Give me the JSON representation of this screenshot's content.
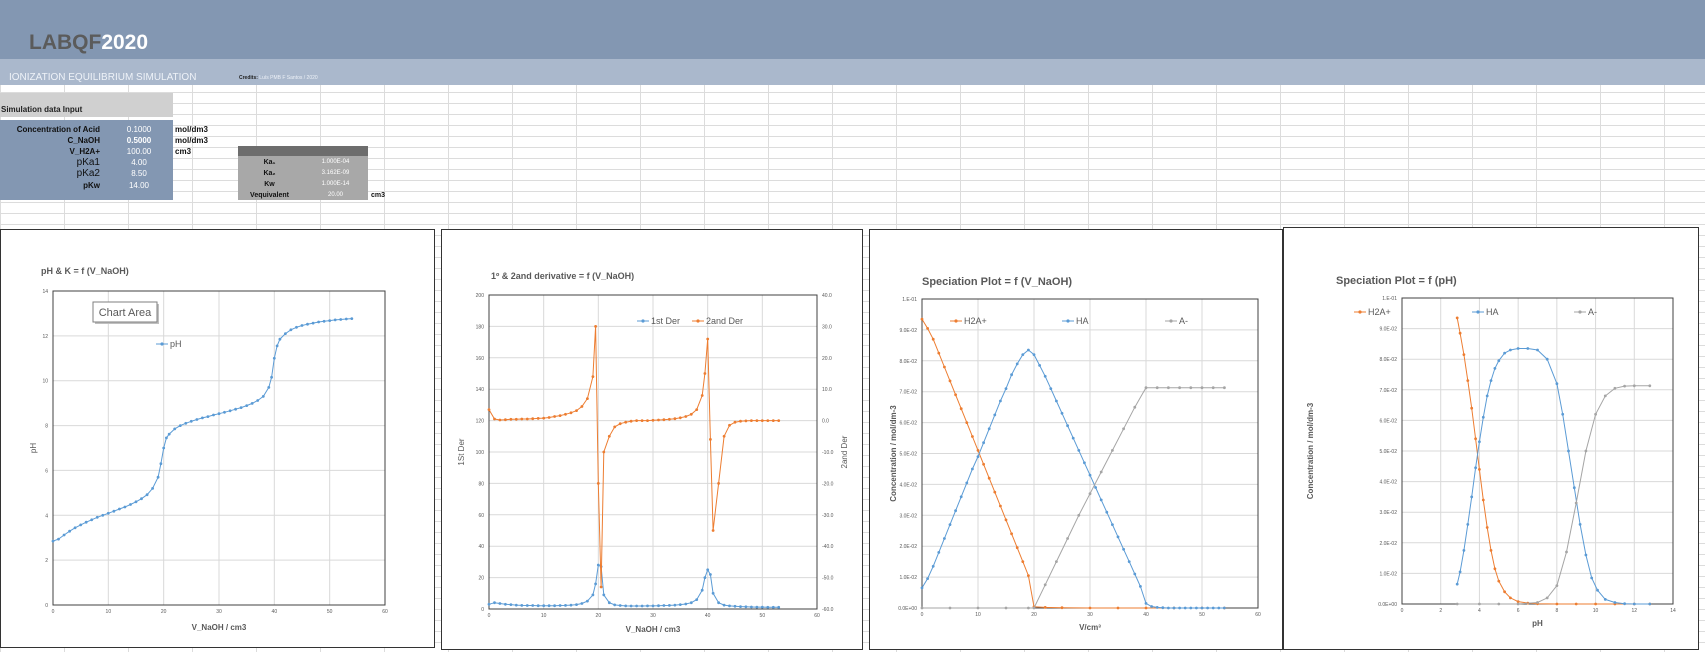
{
  "header": {
    "logo_part1": "LABQF",
    "logo_part2": "2020",
    "subtitle": "IONIZATION EQUILIBRIUM SIMULATION",
    "credits_label": "Credits:",
    "credits_text": "Luís PMB F Santos / 2020"
  },
  "input_section": {
    "title": "Simulation data Input",
    "rows": [
      {
        "label": "Concentration of Acid",
        "value": "0.1000",
        "unit": "mol/dm3"
      },
      {
        "label": "C_NaOH",
        "value": "0.5000",
        "unit": "mol/dm3"
      },
      {
        "label": "V_H2A+",
        "value": "100.00",
        "unit": "cm3"
      },
      {
        "label": "pKa1",
        "value": "4.00",
        "unit": ""
      },
      {
        "label": "pKa2",
        "value": "8.50",
        "unit": ""
      },
      {
        "label": "pKw",
        "value": "14.00",
        "unit": ""
      }
    ]
  },
  "constants": {
    "rows": [
      {
        "label": "Ka₁",
        "value": "1.000E-04",
        "unit": ""
      },
      {
        "label": "Ka₂",
        "value": "3.162E-09",
        "unit": ""
      },
      {
        "label": "Kw",
        "value": "1.000E-14",
        "unit": ""
      },
      {
        "label": "Vequivalent",
        "value": "20.00",
        "unit": "cm3"
      }
    ]
  },
  "colors": {
    "banner": "#8397b2",
    "subbar": "#aab8cc",
    "blue_series": "#5b9bd5",
    "orange_series": "#ed7d31",
    "gray_series": "#a5a5a5"
  },
  "chart_data": [
    {
      "type": "line",
      "title": "pH & K  = f (V_NaOH)",
      "xlabel": "V_NaOH / cm3",
      "ylabel": "pH",
      "xlim": [
        0,
        60
      ],
      "ylim": [
        0,
        14
      ],
      "xticks": [
        "0",
        "10",
        "20",
        "30",
        "40",
        "50",
        "60"
      ],
      "yticks": [
        "0",
        "2",
        "4",
        "6",
        "8",
        "10",
        "12",
        "14"
      ],
      "tooltip": "Chart Area",
      "grid": true,
      "legend_position": "top-left",
      "series": [
        {
          "name": "pH",
          "color": "#5b9bd5",
          "x": [
            0,
            1,
            2,
            3,
            4,
            5,
            6,
            7,
            8,
            9,
            10,
            11,
            12,
            13,
            14,
            15,
            16,
            17,
            18,
            19,
            19.5,
            20,
            20.5,
            21,
            22,
            23,
            24,
            25,
            26,
            27,
            28,
            29,
            30,
            31,
            32,
            33,
            34,
            35,
            36,
            37,
            38,
            39,
            39.5,
            40,
            40.5,
            41,
            42,
            43,
            44,
            45,
            46,
            47,
            48,
            49,
            50,
            51,
            52,
            53,
            54
          ],
          "y": [
            2.85,
            2.94,
            3.12,
            3.29,
            3.44,
            3.57,
            3.69,
            3.8,
            3.91,
            4.0,
            4.09,
            4.18,
            4.28,
            4.37,
            4.48,
            4.6,
            4.74,
            4.92,
            5.2,
            5.7,
            6.3,
            7.0,
            7.45,
            7.62,
            7.85,
            8.0,
            8.1,
            8.19,
            8.27,
            8.34,
            8.4,
            8.47,
            8.53,
            8.59,
            8.66,
            8.73,
            8.8,
            8.89,
            8.99,
            9.12,
            9.3,
            9.7,
            10.15,
            11.0,
            11.55,
            11.85,
            12.1,
            12.27,
            12.38,
            12.46,
            12.52,
            12.57,
            12.62,
            12.65,
            12.68,
            12.71,
            12.73,
            12.75,
            12.77
          ]
        }
      ]
    },
    {
      "type": "line",
      "title": "1º & 2and derivative  = f (V_NaOH)",
      "xlabel": "V_NaOH / cm3",
      "ylabel": "1St Der",
      "y2label": "2and Der",
      "xlim": [
        0,
        60
      ],
      "ylim": [
        0,
        200
      ],
      "y2lim": [
        -60,
        40
      ],
      "xticks": [
        "0",
        "10",
        "20",
        "30",
        "40",
        "50",
        "60"
      ],
      "yticks": [
        "0",
        "20",
        "40",
        "60",
        "80",
        "100",
        "120",
        "140",
        "160",
        "180",
        "200"
      ],
      "y2ticks": [
        "-60.0",
        "-50.0",
        "-40.0",
        "-30.0",
        "-20.0",
        "-10.0",
        "0.0",
        "10.0",
        "20.0",
        "30.0",
        "40.0"
      ],
      "grid": true,
      "legend_position": "top",
      "series": [
        {
          "name": "1st Der",
          "color": "#5b9bd5",
          "axis": "left",
          "x": [
            0,
            1,
            2,
            3,
            4,
            5,
            6,
            7,
            8,
            9,
            10,
            11,
            12,
            13,
            14,
            15,
            16,
            17,
            18,
            19,
            19.5,
            20,
            20.5,
            21,
            22,
            23,
            24,
            25,
            26,
            27,
            28,
            29,
            30,
            31,
            32,
            33,
            34,
            35,
            36,
            37,
            38,
            39,
            39.5,
            40,
            40.5,
            41,
            42,
            43,
            44,
            45,
            46,
            47,
            48,
            49,
            50,
            51,
            52,
            53
          ],
          "y": [
            3.0,
            4.0,
            3.5,
            3.0,
            2.8,
            2.5,
            2.3,
            2.2,
            2.2,
            2.1,
            2.1,
            2.1,
            2.1,
            2.2,
            2.3,
            2.5,
            2.8,
            3.5,
            5.0,
            9.0,
            16.0,
            28.0,
            27.0,
            9.0,
            4.0,
            2.6,
            2.2,
            2.0,
            1.9,
            1.9,
            1.9,
            2.0,
            2.0,
            2.1,
            2.2,
            2.3,
            2.5,
            2.8,
            3.2,
            4.0,
            6.0,
            12.0,
            20.0,
            25.0,
            22.0,
            10.0,
            4.0,
            2.5,
            2.0,
            1.7,
            1.5,
            1.4,
            1.3,
            1.2,
            1.2,
            1.1,
            1.1,
            1.1
          ]
        },
        {
          "name": "2and Der",
          "color": "#ed7d31",
          "axis": "right",
          "x": [
            0,
            1,
            2,
            3,
            4,
            5,
            6,
            7,
            8,
            9,
            10,
            11,
            12,
            13,
            14,
            15,
            16,
            17,
            18,
            19,
            19.5,
            20,
            20.5,
            21,
            22,
            23,
            24,
            25,
            26,
            27,
            28,
            29,
            30,
            31,
            32,
            33,
            34,
            35,
            36,
            37,
            38,
            39,
            39.5,
            40,
            40.5,
            41,
            42,
            43,
            44,
            45,
            46,
            47,
            48,
            49,
            50,
            51,
            52,
            53
          ],
          "y": [
            3.5,
            0.5,
            0.2,
            0.3,
            0.4,
            0.4,
            0.5,
            0.5,
            0.6,
            0.7,
            0.8,
            1.0,
            1.3,
            1.6,
            2.0,
            2.5,
            3.2,
            4.5,
            7.0,
            14.0,
            30.0,
            -20.0,
            -53.0,
            -10.0,
            -5.0,
            -2.0,
            -1.0,
            -0.5,
            -0.2,
            0.0,
            0.0,
            0.0,
            0.1,
            0.2,
            0.3,
            0.4,
            0.6,
            0.9,
            1.3,
            2.0,
            3.5,
            8.0,
            15.0,
            26.0,
            -6.0,
            -35.0,
            -20.0,
            -5.0,
            -1.5,
            -0.5,
            -0.2,
            -0.1,
            0.0,
            0.0,
            0.0,
            0.0,
            0.0,
            0.0
          ]
        }
      ]
    },
    {
      "type": "line",
      "title": "Speciation Plot = f (V_NaOH)",
      "xlabel": "V/cm³",
      "ylabel": "Concentration / mol/dm-3",
      "xlim": [
        0,
        60
      ],
      "ylim": [
        0,
        0.1
      ],
      "xticks": [
        "0",
        "10",
        "20",
        "30",
        "40",
        "50",
        "60"
      ],
      "yticks": [
        "0.0E+00",
        "1.0E-02",
        "2.0E-02",
        "3.0E-02",
        "4.0E-02",
        "5.0E-02",
        "6.0E-02",
        "7.0E-02",
        "8.0E-02",
        "9.0E-02",
        "1.E-01"
      ],
      "grid": true,
      "legend_position": "top",
      "series": [
        {
          "name": "H2A+",
          "color": "#ed7d31",
          "x": [
            0,
            1,
            2,
            3,
            4,
            5,
            6,
            7,
            8,
            9,
            10,
            11,
            12,
            13,
            14,
            15,
            16,
            17,
            18,
            19,
            20,
            22,
            25,
            30,
            35,
            40,
            45,
            50,
            54
          ],
          "y": [
            0.0935,
            0.0905,
            0.087,
            0.0825,
            0.078,
            0.0735,
            0.069,
            0.0645,
            0.06,
            0.0555,
            0.051,
            0.0465,
            0.042,
            0.0375,
            0.033,
            0.0285,
            0.024,
            0.0195,
            0.015,
            0.0105,
            0.0004,
            0.0002,
            0.0001,
            0.0,
            0.0,
            0.0,
            0.0,
            0.0,
            0.0
          ]
        },
        {
          "name": "HA",
          "color": "#5b9bd5",
          "x": [
            0,
            1,
            2,
            3,
            4,
            5,
            6,
            7,
            8,
            9,
            10,
            11,
            12,
            13,
            14,
            15,
            16,
            17,
            18,
            19,
            20,
            21,
            22,
            23,
            24,
            25,
            26,
            27,
            28,
            29,
            30,
            31,
            32,
            33,
            34,
            35,
            36,
            37,
            38,
            39,
            40,
            41,
            42,
            43,
            44,
            45,
            46,
            47,
            48,
            49,
            50,
            51,
            52,
            53,
            54
          ],
          "y": [
            0.0065,
            0.0095,
            0.0135,
            0.018,
            0.0225,
            0.027,
            0.0315,
            0.036,
            0.0405,
            0.045,
            0.049,
            0.0535,
            0.058,
            0.0625,
            0.067,
            0.071,
            0.0755,
            0.079,
            0.082,
            0.0835,
            0.082,
            0.0785,
            0.075,
            0.071,
            0.067,
            0.063,
            0.059,
            0.055,
            0.051,
            0.047,
            0.043,
            0.039,
            0.035,
            0.031,
            0.027,
            0.023,
            0.019,
            0.015,
            0.011,
            0.007,
            0.0015,
            0.0005,
            0.0002,
            0.0001,
            0.0,
            0.0,
            0.0,
            0.0,
            0.0,
            0.0,
            0.0,
            0.0,
            0.0,
            0.0,
            0.0
          ]
        },
        {
          "name": "A-",
          "color": "#a5a5a5",
          "x": [
            0,
            5,
            10,
            15,
            19,
            20,
            22,
            24,
            26,
            28,
            30,
            32,
            34,
            36,
            38,
            40,
            42,
            44,
            46,
            48,
            50,
            52,
            54
          ],
          "y": [
            0.0,
            0.0,
            0.0,
            0.0,
            0.0,
            0.0,
            0.0075,
            0.015,
            0.0225,
            0.03,
            0.037,
            0.044,
            0.051,
            0.058,
            0.065,
            0.0713,
            0.0713,
            0.0713,
            0.0713,
            0.0713,
            0.0713,
            0.0713,
            0.0713
          ]
        }
      ]
    },
    {
      "type": "line",
      "title": "Speciation Plot = f (pH)",
      "xlabel": "pH",
      "ylabel": "Concentration / mol/dm-3",
      "xlim": [
        0,
        14
      ],
      "ylim": [
        0,
        0.1
      ],
      "xticks": [
        "0",
        "2",
        "4",
        "6",
        "8",
        "10",
        "12",
        "14"
      ],
      "yticks": [
        "0.0E+00",
        "1.0E-02",
        "2.0E-02",
        "3.0E-02",
        "4.0E-02",
        "5.0E-02",
        "6.0E-02",
        "7.0E-02",
        "8.0E-02",
        "9.0E-02",
        "1.E-01"
      ],
      "grid": true,
      "legend_position": "top",
      "series": [
        {
          "name": "H2A+",
          "color": "#ed7d31",
          "x": [
            2.85,
            3.0,
            3.2,
            3.4,
            3.6,
            3.8,
            4.0,
            4.2,
            4.4,
            4.6,
            4.8,
            5.0,
            5.3,
            5.6,
            6.0,
            6.5,
            7.0,
            8.0,
            9.0,
            10.0,
            11.0,
            12.0,
            12.8
          ],
          "y": [
            0.0935,
            0.0885,
            0.0815,
            0.073,
            0.064,
            0.054,
            0.044,
            0.034,
            0.025,
            0.0175,
            0.0115,
            0.0075,
            0.004,
            0.002,
            0.0008,
            0.0003,
            0.0001,
            0.0,
            0.0,
            0.0,
            0.0,
            0.0,
            0.0
          ]
        },
        {
          "name": "HA",
          "color": "#5b9bd5",
          "x": [
            2.85,
            3.0,
            3.2,
            3.4,
            3.6,
            3.8,
            4.0,
            4.2,
            4.4,
            4.6,
            4.8,
            5.0,
            5.3,
            5.6,
            6.0,
            6.5,
            7.0,
            7.5,
            8.0,
            8.3,
            8.6,
            8.9,
            9.2,
            9.5,
            9.8,
            10.1,
            10.5,
            11.0,
            11.5,
            12.0,
            12.8
          ],
          "y": [
            0.0065,
            0.0105,
            0.0175,
            0.026,
            0.035,
            0.0445,
            0.053,
            0.061,
            0.068,
            0.073,
            0.077,
            0.0795,
            0.082,
            0.083,
            0.0835,
            0.0835,
            0.083,
            0.08,
            0.072,
            0.062,
            0.05,
            0.038,
            0.026,
            0.016,
            0.0085,
            0.0045,
            0.0015,
            0.0005,
            0.0001,
            0.0,
            0.0
          ]
        },
        {
          "name": "A-",
          "color": "#a5a5a5",
          "x": [
            2.85,
            4.0,
            5.0,
            6.0,
            7.0,
            7.5,
            8.0,
            8.5,
            9.0,
            9.5,
            10.0,
            10.5,
            11.0,
            11.5,
            12.0,
            12.8
          ],
          "y": [
            0.0,
            0.0,
            0.0,
            0.0,
            0.0005,
            0.002,
            0.006,
            0.017,
            0.033,
            0.05,
            0.062,
            0.068,
            0.0705,
            0.0712,
            0.0713,
            0.0713
          ]
        }
      ]
    }
  ]
}
